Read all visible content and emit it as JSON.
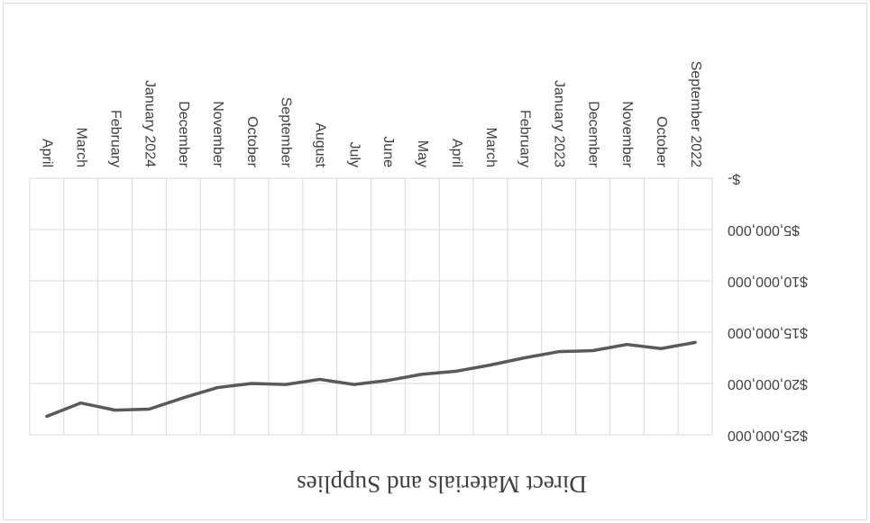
{
  "chart_data": {
    "type": "line",
    "title": "Direct Materials and Supplies",
    "categories": [
      "September 2022",
      "October",
      "November",
      "December",
      "January 2023",
      "February",
      "March",
      "April",
      "May",
      "June",
      "July",
      "August",
      "September",
      "October",
      "November",
      "December",
      "January 2024",
      "February",
      "March",
      "April"
    ],
    "series": [
      {
        "name": "Direct Materials and Supplies",
        "color": "#595959",
        "values": [
          16000000,
          16600000,
          16200000,
          16800000,
          16900000,
          17500000,
          18200000,
          18800000,
          19100000,
          19700000,
          20100000,
          19600000,
          20100000,
          20000000,
          20400000,
          21400000,
          22500000,
          22600000,
          21900000,
          23200000
        ]
      }
    ],
    "ylim": [
      0,
      25000000
    ],
    "yticks": [
      {
        "value": 0,
        "label": "$-"
      },
      {
        "value": 5000000,
        "label": "$5,000,000"
      },
      {
        "value": 10000000,
        "label": "$10,000,000"
      },
      {
        "value": 15000000,
        "label": "$15,000,000"
      },
      {
        "value": 20000000,
        "label": "$20,000,000"
      },
      {
        "value": 25000000,
        "label": "$25,000,000"
      }
    ],
    "grid": true,
    "rotation": 180
  }
}
